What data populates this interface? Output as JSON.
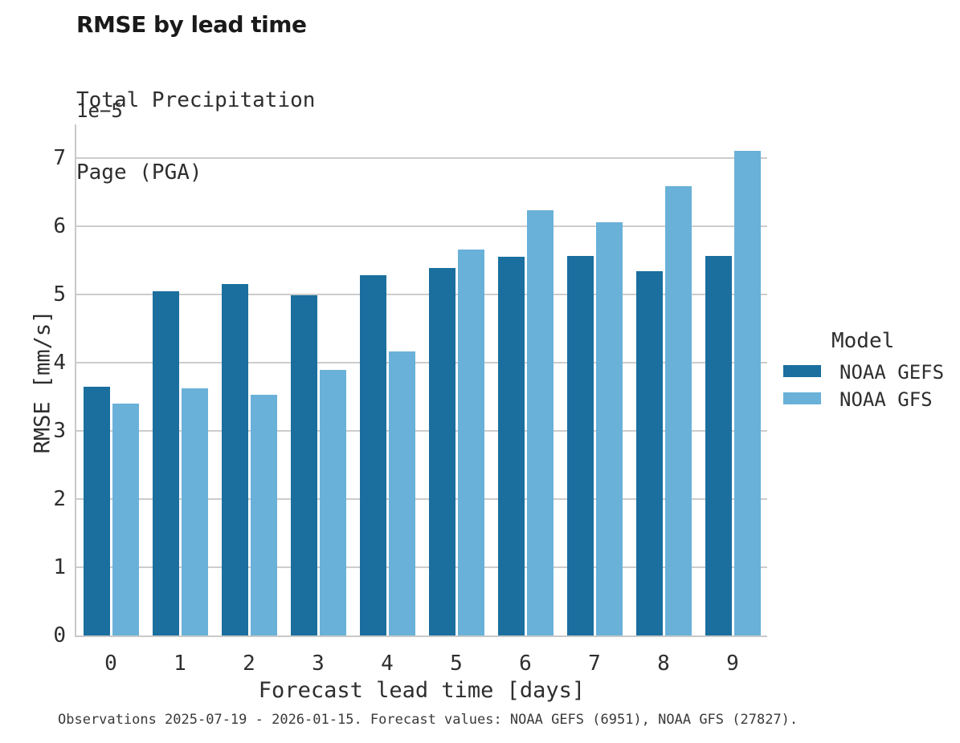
{
  "footnote": "Observations 2025-07-19 - 2026-01-15. Forecast values: NOAA GEFS (6951), NOAA GFS (27827).",
  "chart_data": {
    "type": "bar",
    "title": "RMSE by lead time",
    "subtitle_lines": [
      "Total Precipitation",
      "Page (PGA)"
    ],
    "offset_label": "1e−5",
    "xlabel": "Forecast lead time [days]",
    "ylabel": "RMSE [mm/s]",
    "categories": [
      "0",
      "1",
      "2",
      "3",
      "4",
      "5",
      "6",
      "7",
      "8",
      "9"
    ],
    "series": [
      {
        "name": "NOAA GEFS",
        "color": "#1A6F9E",
        "values": [
          3.65,
          5.04,
          5.15,
          4.99,
          5.28,
          5.39,
          5.55,
          5.56,
          5.34,
          5.56
        ]
      },
      {
        "name": "NOAA GFS",
        "color": "#69B1D8",
        "values": [
          3.4,
          3.62,
          3.53,
          3.89,
          4.16,
          5.66,
          6.23,
          6.05,
          6.59,
          7.1
        ]
      }
    ],
    "ylim": [
      0,
      7.49
    ],
    "yticks": [
      0,
      1,
      2,
      3,
      4,
      5,
      6,
      7
    ],
    "grid": true,
    "grid_color": "#cccccc",
    "spine_color": "#c9c9c9",
    "legend": {
      "title": "Model",
      "position": "center right"
    }
  }
}
